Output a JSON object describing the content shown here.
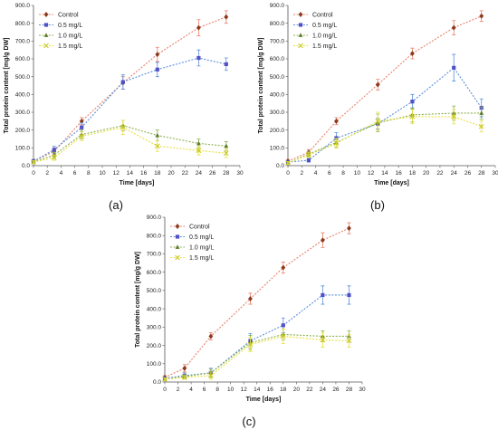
{
  "chart_data": [
    {
      "type": "line",
      "panel_label": "(a)",
      "xlabel": "Time [days]",
      "ylabel": "Total protein content [mg/g DW]",
      "xlim": [
        0,
        30
      ],
      "ylim": [
        0,
        900
      ],
      "x_ticks": [
        "0",
        "2",
        "4",
        "6",
        "8",
        "10",
        "12",
        "14",
        "16",
        "18",
        "20",
        "22",
        "24",
        "26",
        "28",
        "30"
      ],
      "y_ticks": [
        "0.0",
        "100.0",
        "200.0",
        "300.0",
        "400.0",
        "500.0",
        "600.0",
        "700.0",
        "800.0",
        "900.0"
      ],
      "legend_position": "top-left",
      "grid": false,
      "x": [
        0,
        3,
        7,
        13,
        18,
        24,
        28
      ],
      "series": [
        {
          "name": "Control",
          "color": "#8B3A1E",
          "line_color": "#E8806A",
          "marker": "diamond",
          "values": [
            25,
            80,
            250,
            465,
            625,
            775,
            835
          ],
          "errors": [
            10,
            15,
            20,
            35,
            40,
            45,
            35
          ]
        },
        {
          "name": "0.5 mg/L",
          "color": "#5050C8",
          "line_color": "#5B8FD9",
          "marker": "square",
          "values": [
            25,
            90,
            215,
            470,
            540,
            605,
            570
          ],
          "errors": [
            10,
            20,
            25,
            40,
            40,
            45,
            35
          ]
        },
        {
          "name": "1.0 mg/L",
          "color": "#5B7A2A",
          "line_color": "#8BB04A",
          "marker": "triangle",
          "values": [
            20,
            60,
            175,
            225,
            170,
            125,
            110
          ],
          "errors": [
            8,
            15,
            25,
            30,
            30,
            25,
            25
          ]
        },
        {
          "name": "1.5 mg/L",
          "color": "#C8C820",
          "line_color": "#E8E040",
          "marker": "x",
          "values": [
            20,
            45,
            165,
            215,
            110,
            85,
            70
          ],
          "errors": [
            8,
            15,
            25,
            40,
            30,
            25,
            25
          ]
        }
      ]
    },
    {
      "type": "line",
      "panel_label": "(b)",
      "xlabel": "Time [days]",
      "ylabel": "Total protein content [mg/g DW]",
      "xlim": [
        0,
        30
      ],
      "ylim": [
        0,
        900
      ],
      "x_ticks": [
        "0",
        "2",
        "4",
        "6",
        "8",
        "10",
        "12",
        "14",
        "16",
        "18",
        "20",
        "22",
        "24",
        "26",
        "28",
        "30"
      ],
      "y_ticks": [
        "0.0",
        "100.0",
        "200.0",
        "300.0",
        "400.0",
        "500.0",
        "600.0",
        "700.0",
        "800.0",
        "900.0"
      ],
      "legend_position": "top-left",
      "grid": false,
      "x": [
        0,
        3,
        7,
        13,
        18,
        24,
        28
      ],
      "series": [
        {
          "name": "Control",
          "color": "#8B3A1E",
          "line_color": "#E8806A",
          "marker": "diamond",
          "values": [
            25,
            75,
            250,
            455,
            630,
            775,
            840
          ],
          "errors": [
            10,
            15,
            20,
            30,
            30,
            40,
            30
          ]
        },
        {
          "name": "0.5 mg/L",
          "color": "#5050C8",
          "line_color": "#5B8FD9",
          "marker": "square",
          "values": [
            20,
            30,
            155,
            235,
            360,
            550,
            325
          ],
          "errors": [
            8,
            10,
            30,
            30,
            40,
            75,
            50
          ]
        },
        {
          "name": "1.0 mg/L",
          "color": "#5B7A2A",
          "line_color": "#8BB04A",
          "marker": "triangle",
          "values": [
            15,
            65,
            130,
            240,
            285,
            295,
            295
          ],
          "errors": [
            8,
            15,
            25,
            50,
            40,
            40,
            35
          ]
        },
        {
          "name": "1.5 mg/L",
          "color": "#C8C820",
          "line_color": "#E8E040",
          "marker": "x",
          "values": [
            15,
            60,
            125,
            250,
            275,
            275,
            220
          ],
          "errors": [
            8,
            15,
            25,
            50,
            40,
            40,
            30
          ]
        }
      ]
    },
    {
      "type": "line",
      "panel_label": "(c)",
      "xlabel": "Time [days]",
      "ylabel": "Total protein content [mg/g DW]",
      "xlim": [
        0,
        30
      ],
      "ylim": [
        0,
        900
      ],
      "x_ticks": [
        "0",
        "2",
        "4",
        "6",
        "8",
        "10",
        "12",
        "14",
        "16",
        "18",
        "20",
        "22",
        "24",
        "26",
        "28",
        "30"
      ],
      "y_ticks": [
        "0.0",
        "100.0",
        "200.0",
        "300.0",
        "400.0",
        "500.0",
        "600.0",
        "700.0",
        "800.0",
        "900.0"
      ],
      "legend_position": "top-left",
      "grid": false,
      "x": [
        0,
        3,
        7,
        13,
        18,
        24,
        28
      ],
      "series": [
        {
          "name": "Control",
          "color": "#8B3A1E",
          "line_color": "#E8806A",
          "marker": "diamond",
          "values": [
            25,
            75,
            250,
            455,
            625,
            775,
            840
          ],
          "errors": [
            10,
            20,
            20,
            30,
            30,
            40,
            30
          ]
        },
        {
          "name": "0.5 mg/L",
          "color": "#5050C8",
          "line_color": "#5B8FD9",
          "marker": "square",
          "values": [
            20,
            35,
            50,
            225,
            310,
            475,
            475
          ],
          "errors": [
            8,
            15,
            25,
            40,
            40,
            50,
            50
          ]
        },
        {
          "name": "1.0 mg/L",
          "color": "#5B7A2A",
          "line_color": "#8BB04A",
          "marker": "triangle",
          "values": [
            15,
            30,
            50,
            215,
            260,
            250,
            250
          ],
          "errors": [
            8,
            10,
            20,
            40,
            30,
            30,
            30
          ]
        },
        {
          "name": "1.5 mg/L",
          "color": "#C8C820",
          "line_color": "#E8E040",
          "marker": "x",
          "values": [
            15,
            25,
            35,
            205,
            250,
            230,
            225
          ],
          "errors": [
            8,
            10,
            20,
            40,
            40,
            40,
            35
          ]
        }
      ]
    }
  ]
}
